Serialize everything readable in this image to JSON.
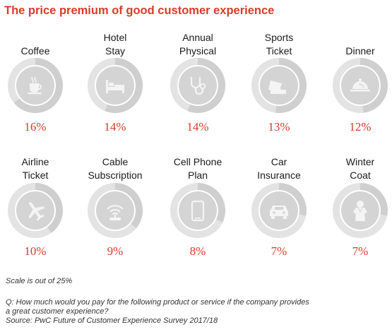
{
  "title": "The price premium of good customer experience",
  "colors": {
    "accent": "#d93b2b",
    "ring_track": "#e3e3e3",
    "ring_inner": "#d4d4d4",
    "icon": "#f4f4f4"
  },
  "chart_data": {
    "type": "radial",
    "scale_max": 25,
    "categories": [
      "Coffee",
      "Hotel Stay",
      "Annual Physical",
      "Sports Ticket",
      "Dinner",
      "Airline Ticket",
      "Cable Subscription",
      "Cell Phone Plan",
      "Car Insurance",
      "Winter Coat"
    ],
    "values": [
      16,
      14,
      14,
      13,
      12,
      10,
      9,
      8,
      7,
      7
    ]
  },
  "items": [
    {
      "label_lines": [
        "Coffee"
      ],
      "value": 16,
      "value_label": "16%",
      "icon": "coffee-cup-icon"
    },
    {
      "label_lines": [
        "Hotel",
        "Stay"
      ],
      "value": 14,
      "value_label": "14%",
      "icon": "bed-icon"
    },
    {
      "label_lines": [
        "Annual",
        "Physical"
      ],
      "value": 14,
      "value_label": "14%",
      "icon": "stethoscope-icon"
    },
    {
      "label_lines": [
        "Sports",
        "Ticket"
      ],
      "value": 13,
      "value_label": "13%",
      "icon": "ticket-icon"
    },
    {
      "label_lines": [
        "Dinner"
      ],
      "value": 12,
      "value_label": "12%",
      "icon": "serving-cloche-icon"
    },
    {
      "label_lines": [
        "Airline",
        "Ticket"
      ],
      "value": 10,
      "value_label": "10%",
      "icon": "airplane-icon"
    },
    {
      "label_lines": [
        "Cable",
        "Subscription"
      ],
      "value": 9,
      "value_label": "9%",
      "icon": "wifi-router-icon"
    },
    {
      "label_lines": [
        "Cell Phone",
        "Plan"
      ],
      "value": 8,
      "value_label": "8%",
      "icon": "smartphone-icon"
    },
    {
      "label_lines": [
        "Car",
        "Insurance"
      ],
      "value": 7,
      "value_label": "7%",
      "icon": "car-icon"
    },
    {
      "label_lines": [
        "Winter",
        "Coat"
      ],
      "value": 7,
      "value_label": "7%",
      "icon": "coat-person-icon"
    }
  ],
  "footer": {
    "scale_note": "Scale is out of 25%",
    "question_line1": "Q: How much would you pay for the following product or service if the company provides",
    "question_line2": "a great customer experience?",
    "source": "Source: PwC Future of Customer Experience Survey 2017/18"
  }
}
